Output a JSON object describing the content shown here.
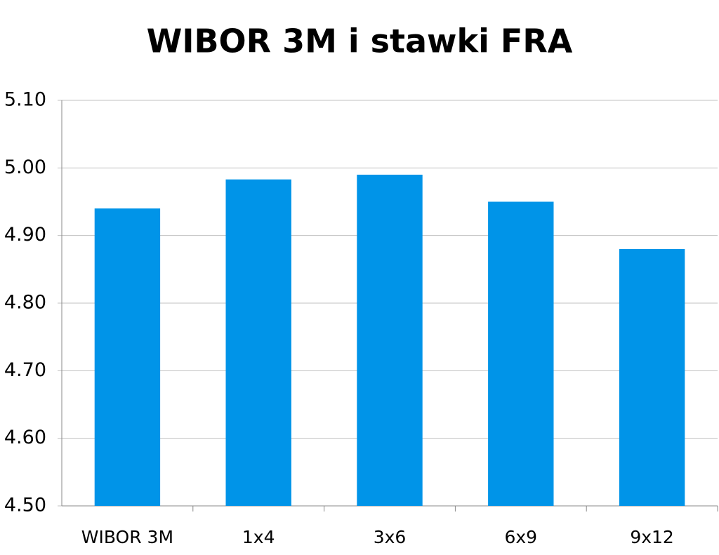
{
  "chart_data": {
    "type": "bar",
    "title": "WIBOR 3M i stawki FRA",
    "categories": [
      "WIBOR 3M",
      "1x4",
      "3x6",
      "6x9",
      "9x12"
    ],
    "values": [
      4.94,
      4.983,
      4.99,
      4.95,
      4.88
    ],
    "color": "#0094e8",
    "ylim": [
      4.5,
      5.1
    ],
    "yticks": [
      {
        "value": 4.5,
        "label": "4.50"
      },
      {
        "value": 4.6,
        "label": "4.60"
      },
      {
        "value": 4.7,
        "label": "4.70"
      },
      {
        "value": 4.8,
        "label": "4.80"
      },
      {
        "value": 4.9,
        "label": "4.90"
      },
      {
        "value": 5.0,
        "label": "5.00"
      },
      {
        "value": 5.1,
        "label": "5.10"
      }
    ],
    "grid": true
  }
}
